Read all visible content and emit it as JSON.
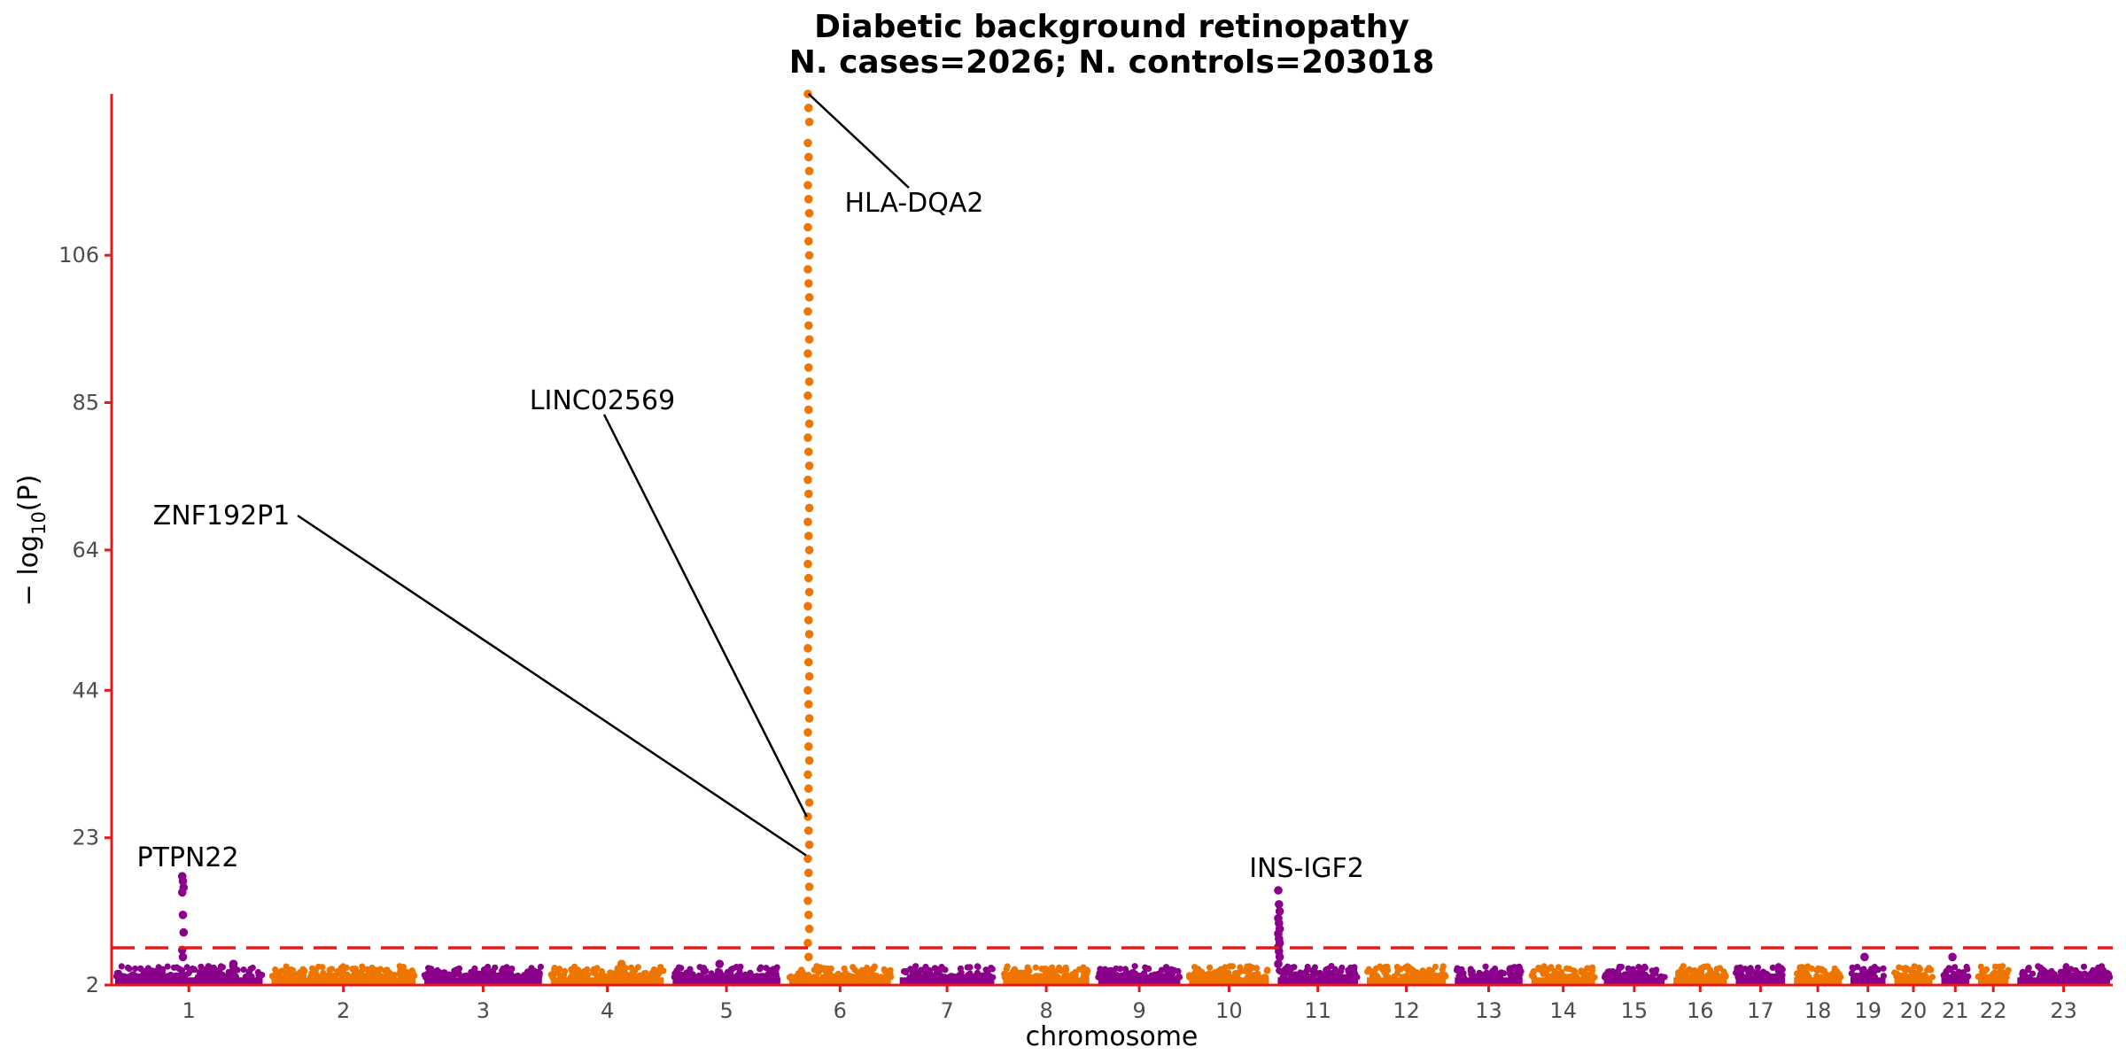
{
  "chart_data": {
    "type": "scatter",
    "subtype": "manhattan",
    "title_line1": "Diabetic background retinopathy",
    "title_line2": "N. cases=2026; N. controls=203018",
    "xlabel": "chromosome",
    "ylabel_prefix": "− log",
    "ylabel_sub": "10",
    "ylabel_suffix": "(P)",
    "y_ticks": [
      2,
      23,
      44,
      64,
      85,
      106
    ],
    "ylim": [
      2,
      129
    ],
    "chromosomes": [
      "1",
      "2",
      "3",
      "4",
      "5",
      "6",
      "7",
      "8",
      "9",
      "10",
      "11",
      "12",
      "13",
      "14",
      "15",
      "16",
      "17",
      "18",
      "19",
      "20",
      "21",
      "22",
      "23"
    ],
    "chromosome_lengths_mb": [
      248,
      242,
      198,
      190,
      181,
      171,
      159,
      145,
      138,
      134,
      135,
      133,
      114,
      107,
      102,
      90,
      83,
      80,
      59,
      64,
      47,
      51,
      156
    ],
    "colors": {
      "odd": "#8b008b",
      "even": "#ee7600",
      "axis": "#e31a1c",
      "threshold": "#e31a1c",
      "label": "#000000"
    },
    "significance_threshold": 7.3,
    "peaks": [
      {
        "chromosome": "1",
        "position_mb": 114,
        "values": [
          17.5,
          16.8,
          15.9,
          15.2,
          12.0,
          9.5,
          7.0,
          6.0
        ]
      },
      {
        "chromosome": "1",
        "position_mb": 200,
        "values": [
          5.0,
          4.3
        ]
      },
      {
        "chromosome": "6",
        "position_mb": 32.6,
        "values": [
          129,
          127,
          125,
          122,
          120,
          118,
          116,
          114,
          112,
          110,
          108,
          106,
          104,
          102,
          100,
          98,
          96,
          94,
          92,
          90,
          88,
          86,
          84,
          82,
          80,
          78,
          76,
          74,
          72,
          70,
          68,
          66,
          64,
          62,
          60,
          58,
          56,
          54,
          52,
          50,
          48,
          46,
          44,
          42,
          40,
          38,
          36,
          34,
          32,
          30,
          28,
          26,
          24,
          22,
          20,
          18,
          16,
          14,
          12,
          10,
          8,
          6
        ]
      },
      {
        "chromosome": "11",
        "position_mb": 2.1,
        "values": [
          15.5,
          13.5,
          12.5,
          11.5,
          10.8,
          10.0,
          9.3,
          8.6,
          8.0,
          7.4,
          6.8,
          6.0,
          5.0
        ]
      },
      {
        "chromosome": "19",
        "position_mb": 25,
        "values": [
          6.0
        ]
      },
      {
        "chromosome": "21",
        "position_mb": 20,
        "values": [
          6.0
        ]
      },
      {
        "chromosome": "5",
        "position_mb": 80,
        "values": [
          5.0
        ]
      },
      {
        "chromosome": "4",
        "position_mb": 120,
        "values": [
          5.0
        ]
      }
    ],
    "annotations": [
      {
        "gene": "PTPN22",
        "chromosome": "1",
        "position_mb": 114,
        "y": 17.5,
        "label_x_mb": 0,
        "label_y": 20.0
      },
      {
        "gene": "ZNF192P1",
        "chromosome": "6",
        "position_mb": 28.3,
        "y": 20.5,
        "label_x_mb": 0,
        "label_y": 67.5
      },
      {
        "gene": "LINC02569",
        "chromosome": "6",
        "position_mb": 29.5,
        "y": 26.0,
        "label_x_mb": 0,
        "label_y": 84.0
      },
      {
        "gene": "HLA-DQA2",
        "chromosome": "6",
        "position_mb": 32.7,
        "y": 129,
        "label_x_mb": 0,
        "label_y": 112.0
      },
      {
        "gene": "INS-IGF2",
        "chromosome": "11",
        "position_mb": 2.1,
        "y": 15.5,
        "label_x_mb": 0,
        "label_y": 18.5
      }
    ]
  }
}
